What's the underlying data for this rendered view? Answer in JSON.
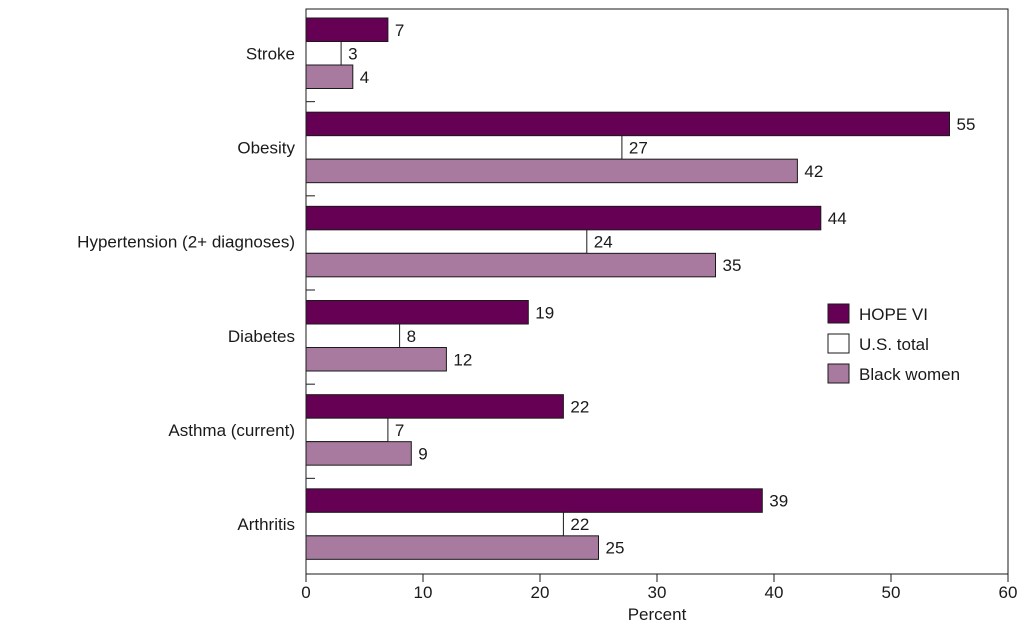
{
  "chart_data": {
    "type": "bar",
    "orientation": "horizontal",
    "categories": [
      "Stroke",
      "Obesity",
      "Hypertension (2+ diagnoses)",
      "Diabetes",
      "Asthma (current)",
      "Arthritis"
    ],
    "series": [
      {
        "name": "HOPE VI",
        "values": [
          7,
          55,
          44,
          19,
          22,
          39
        ],
        "color": "#660055"
      },
      {
        "name": "U.S. total",
        "values": [
          3,
          27,
          24,
          8,
          7,
          22
        ],
        "color": "#ffffff"
      },
      {
        "name": "Black women",
        "values": [
          4,
          42,
          35,
          12,
          9,
          25
        ],
        "color": "#a87aa0"
      }
    ],
    "xlabel": "Percent",
    "xlim": [
      0,
      60
    ],
    "xticks": [
      0,
      10,
      20,
      30,
      40,
      50,
      60
    ],
    "grid": false,
    "legend_position": "right"
  }
}
